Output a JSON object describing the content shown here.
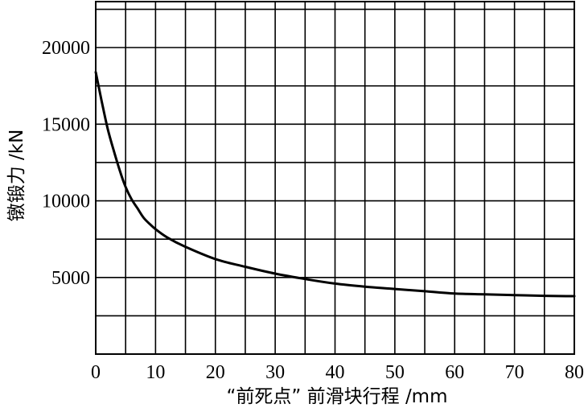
{
  "chart_data": {
    "type": "line",
    "xlabel": "“前死点” 前滑块行程 /mm",
    "ylabel": "镦锻力 /kN",
    "xlim": [
      0,
      80
    ],
    "ylim": [
      0,
      23000
    ],
    "x_ticks": [
      "0",
      "10",
      "20",
      "30",
      "40",
      "50",
      "60",
      "70",
      "80"
    ],
    "y_ticks": [
      "5000",
      "10000",
      "15000",
      "20000"
    ],
    "grid": true,
    "series": [
      {
        "x": [
          0,
          1,
          2,
          3,
          4,
          5,
          6,
          7,
          8,
          9,
          10,
          12,
          15,
          20,
          25,
          30,
          35,
          40,
          45,
          50,
          55,
          60,
          65,
          70,
          75,
          80
        ],
        "y": [
          18400,
          16500,
          14700,
          13300,
          12000,
          10900,
          10100,
          9500,
          8900,
          8500,
          8150,
          7600,
          7000,
          6200,
          5700,
          5250,
          4900,
          4600,
          4400,
          4250,
          4100,
          3950,
          3900,
          3850,
          3800,
          3780
        ]
      }
    ]
  }
}
